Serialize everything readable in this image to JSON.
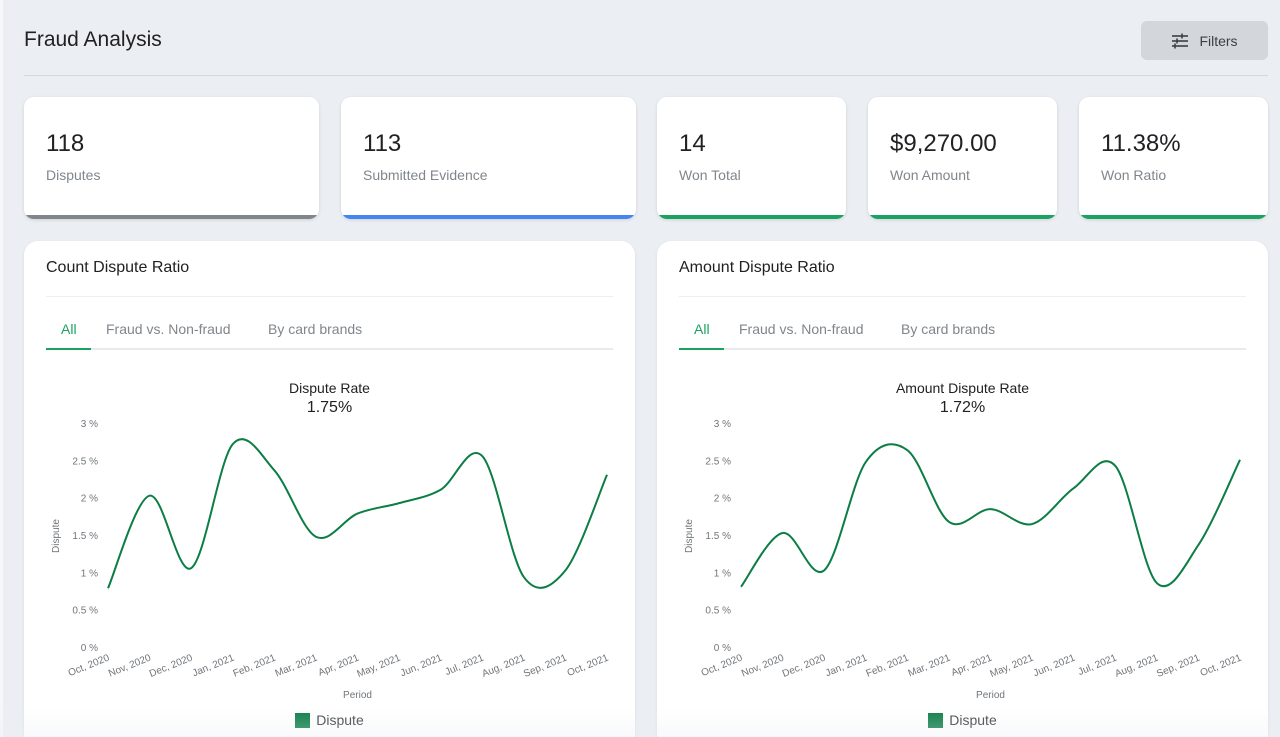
{
  "header": {
    "title": "Fraud Analysis",
    "filters_label": "Filters",
    "filters_icon": "tune-sliders-icon"
  },
  "kpis": [
    {
      "value": "118",
      "label": "Disputes",
      "accent": "#80868b"
    },
    {
      "value": "113",
      "label": "Submitted Evidence",
      "accent": "#4285f4"
    },
    {
      "value": "14",
      "label": "Won Total",
      "accent": "#1aa260"
    },
    {
      "value": "$9,270.00",
      "label": "Won Amount",
      "accent": "#1aa260"
    },
    {
      "value": "11.38%",
      "label": "Won Ratio",
      "accent": "#1aa260"
    }
  ],
  "cards": [
    {
      "title": "Count Dispute Ratio",
      "tabs": [
        {
          "label": "All",
          "active": true
        },
        {
          "label": "Fraud vs. Non-fraud",
          "active": false
        },
        {
          "label": "By card brands",
          "active": false
        }
      ],
      "chart_title": "Dispute Rate",
      "chart_value": "1.75%",
      "legend": "Dispute"
    },
    {
      "title": "Amount Dispute Ratio",
      "tabs": [
        {
          "label": "All",
          "active": true
        },
        {
          "label": "Fraud vs. Non-fraud",
          "active": false
        },
        {
          "label": "By card brands",
          "active": false
        }
      ],
      "chart_title": "Amount Dispute Rate",
      "chart_value": "1.72%",
      "legend": "Dispute"
    }
  ],
  "chart_data": [
    {
      "type": "line",
      "title": "Dispute Rate",
      "subtitle": "1.75%",
      "xlabel": "Period",
      "ylabel": "Dispute",
      "ylim": [
        0,
        3
      ],
      "yticks": [
        "0 %",
        "0.5 %",
        "1 %",
        "1.5 %",
        "2 %",
        "2.5 %",
        "3 %"
      ],
      "grid": false,
      "legend_position": "bottom",
      "color": "#0b7d45",
      "categories": [
        "Oct, 2020",
        "Nov, 2020",
        "Dec, 2020",
        "Jan, 2021",
        "Feb, 2021",
        "Mar, 2021",
        "Apr, 2021",
        "May, 2021",
        "Jun, 2021",
        "Jul, 2021",
        "Aug, 2021",
        "Sep, 2021",
        "Oct, 2021"
      ],
      "series": [
        {
          "name": "Dispute",
          "values": [
            0.8,
            2.04,
            1.07,
            2.73,
            2.38,
            1.49,
            1.8,
            1.94,
            2.12,
            2.57,
            0.95,
            1.04,
            2.32
          ]
        }
      ]
    },
    {
      "type": "line",
      "title": "Amount Dispute Rate",
      "subtitle": "1.72%",
      "xlabel": "Period",
      "ylabel": "Dispute",
      "ylim": [
        0,
        3
      ],
      "yticks": [
        "0 %",
        "0.5 %",
        "1 %",
        "1.5 %",
        "2 %",
        "2.5 %",
        "3 %"
      ],
      "grid": false,
      "legend_position": "bottom",
      "color": "#0b7d45",
      "categories": [
        "Oct, 2020",
        "Nov, 2020",
        "Dec, 2020",
        "Jan, 2021",
        "Feb, 2021",
        "Mar, 2021",
        "Apr, 2021",
        "May, 2021",
        "Jun, 2021",
        "Jul, 2021",
        "Aug, 2021",
        "Sep, 2021",
        "Oct, 2021"
      ],
      "series": [
        {
          "name": "Dispute",
          "values": [
            0.82,
            1.54,
            1.04,
            2.49,
            2.65,
            1.69,
            1.86,
            1.66,
            2.14,
            2.44,
            0.87,
            1.38,
            2.52
          ]
        }
      ]
    }
  ]
}
